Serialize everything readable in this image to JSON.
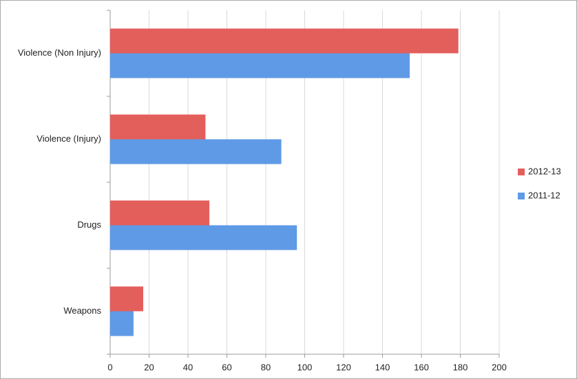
{
  "chart_data": {
    "type": "hbar",
    "categories": [
      "Violence (Non Injury)",
      "Violence (Injury)",
      "Drugs",
      "Weapons"
    ],
    "series": [
      {
        "name": "2012-13",
        "color": "#e35f5c",
        "values": [
          179,
          49,
          51,
          17
        ]
      },
      {
        "name": "2011-12",
        "color": "#5f9ae6",
        "values": [
          154,
          88,
          96,
          12
        ]
      }
    ],
    "xlim": [
      0,
      200
    ],
    "xticks": [
      0,
      20,
      40,
      60,
      80,
      100,
      120,
      140,
      160,
      180,
      200
    ],
    "grid": true,
    "legend": "right"
  }
}
